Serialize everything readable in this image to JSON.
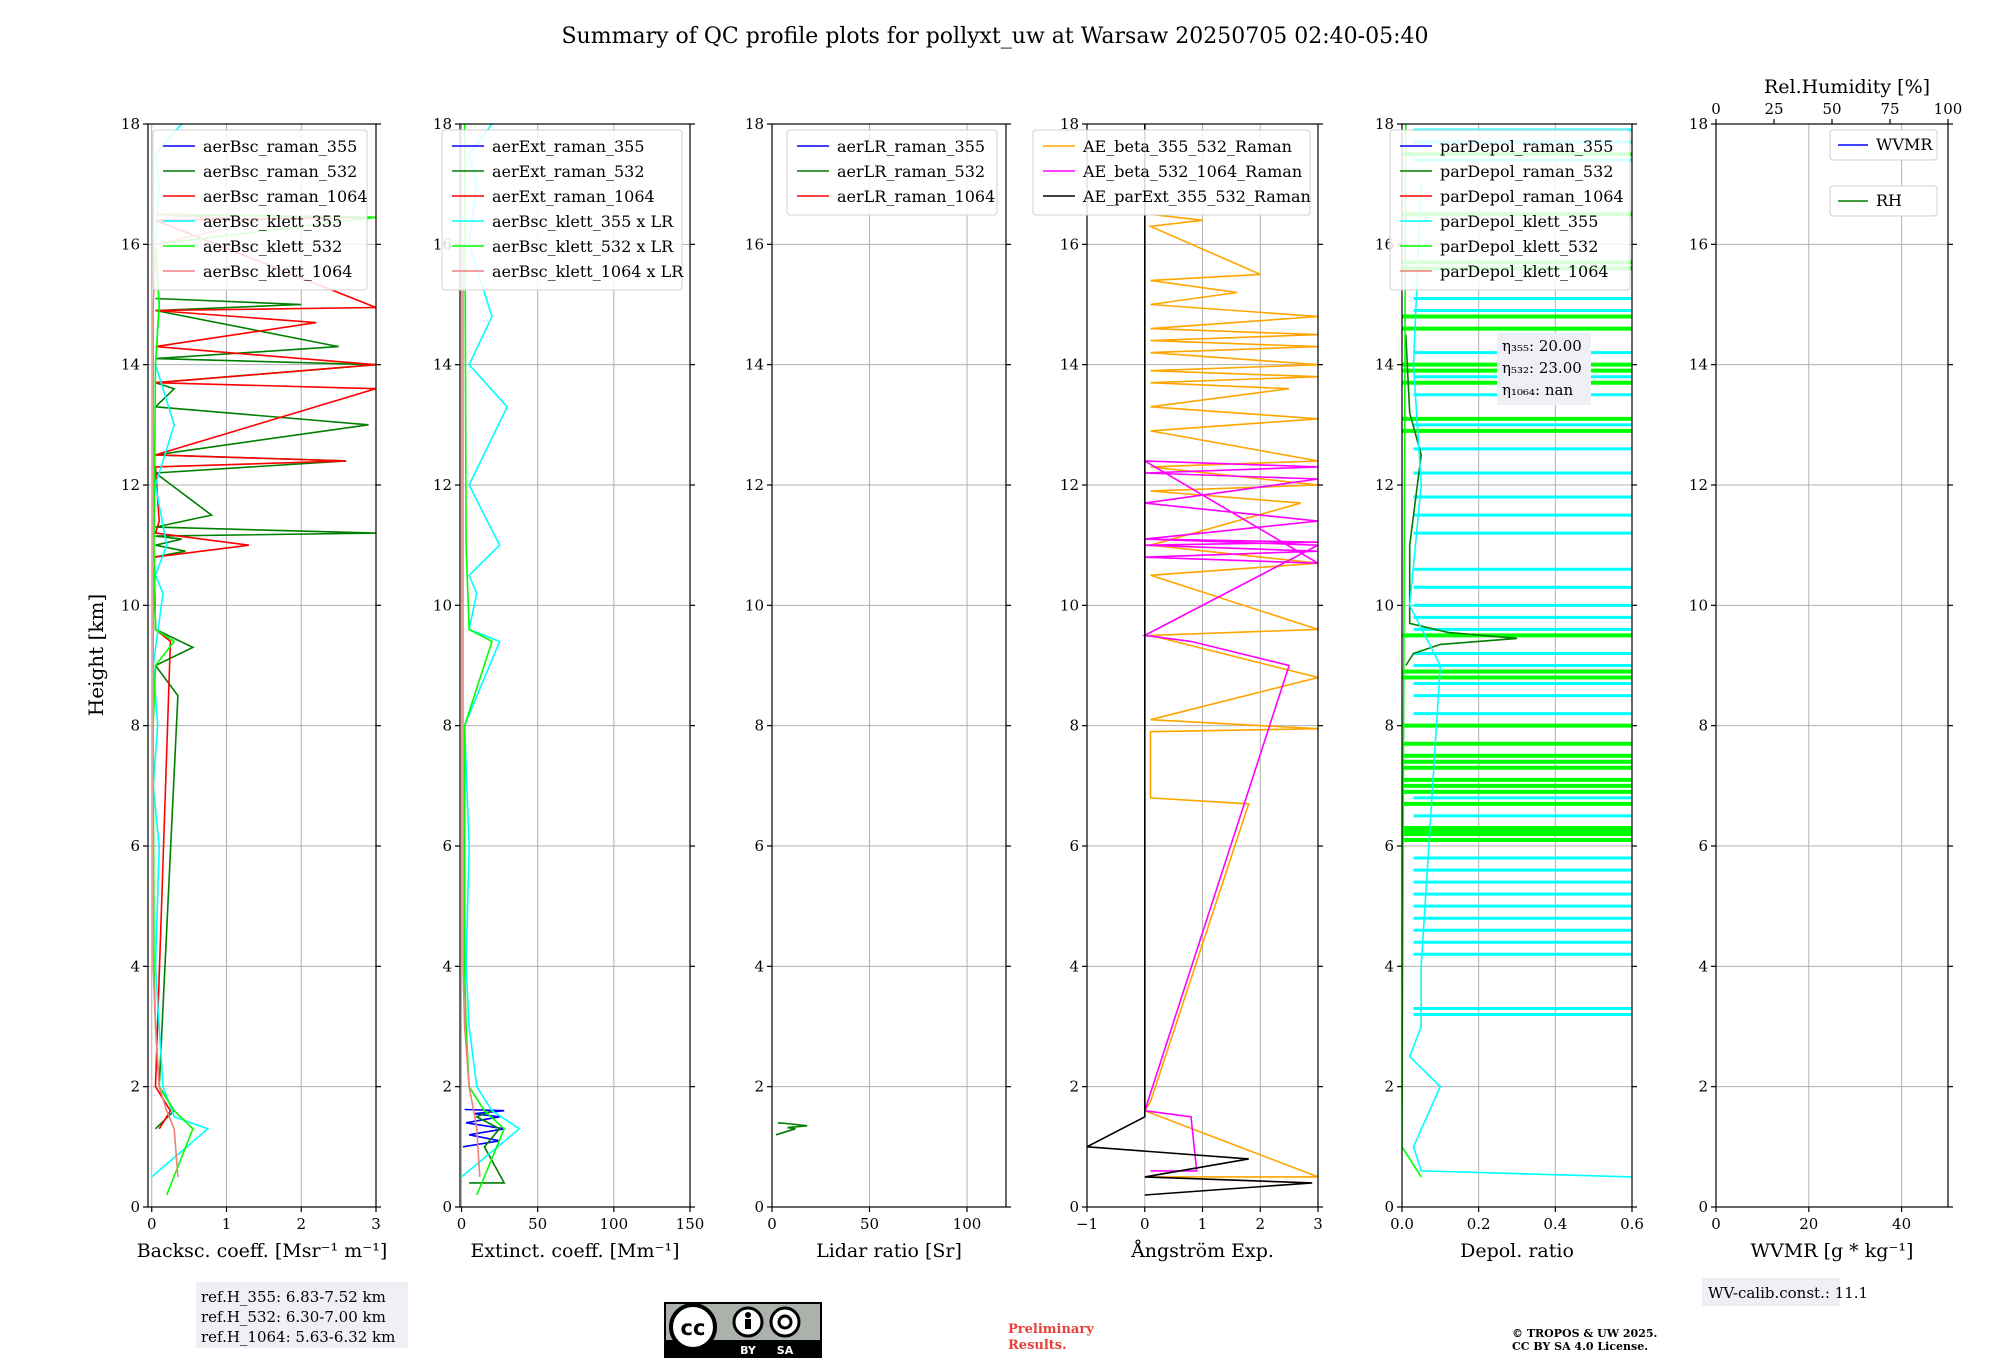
{
  "figure_title": "Summary of QC profile plots for pollyxt_uw at Warsaw 20250705 02:40-05:40",
  "colors": {
    "raman_355": "#0000ff",
    "raman_532": "#008000",
    "raman_1064": "#ff0000",
    "klett_355": "#00ffff",
    "klett_532": "#00ff00",
    "klett_1064": "#f08080",
    "ae_beta_355_532": "#ffa500",
    "ae_beta_532_1064": "#ff00ff",
    "ae_parext": "#000000",
    "grid": "#b0b0b0",
    "box_bg": "#eef0f5"
  },
  "chart_data": [
    {
      "type": "line",
      "panel": "backscatter",
      "xlabel": "Backsc. coeff. [Msr⁻¹ m⁻¹]",
      "ylabel": "Height [km]",
      "xlim": [
        -0.05,
        3
      ],
      "ylim": [
        0,
        18
      ],
      "xticks": [
        "0",
        "1",
        "2",
        "3"
      ],
      "xtick_values": [
        0,
        1,
        2,
        3
      ],
      "yticks": [
        "0",
        "2",
        "4",
        "6",
        "8",
        "10",
        "12",
        "14",
        "16",
        "18"
      ],
      "legend": [
        "aerBsc_raman_355",
        "aerBsc_raman_532",
        "aerBsc_raman_1064",
        "aerBsc_klett_355",
        "aerBsc_klett_532",
        "aerBsc_klett_1064"
      ],
      "series": [
        {
          "name": "aerBsc_raman_532",
          "color_key": "raman_532",
          "x": [
            0.05,
            0.3,
            0.1,
            0.35,
            0.05,
            0.55,
            0.05,
            0.03,
            0.45,
            0.05,
            0.4,
            0.05,
            3.0,
            0.05,
            0.8,
            0.05,
            2.6,
            0.05,
            2.9,
            0.05,
            0.3,
            0.05,
            3.0,
            0.05,
            2.5,
            0.05,
            2.0,
            0.05
          ],
          "y": [
            1.3,
            1.6,
            2.0,
            8.5,
            9.0,
            9.3,
            9.6,
            10.8,
            10.9,
            11.0,
            11.1,
            11.15,
            11.2,
            11.3,
            11.5,
            12.2,
            12.4,
            12.5,
            13.0,
            13.3,
            13.6,
            13.7,
            14.0,
            14.1,
            14.3,
            14.9,
            15.0,
            15.1
          ]
        },
        {
          "name": "aerBsc_raman_1064",
          "color_key": "raman_1064",
          "x": [
            0.1,
            0.25,
            0.05,
            0.25,
            0.05,
            0.03,
            1.3,
            0.05,
            0.1,
            0.05,
            2.6,
            0.05,
            3.0,
            0.05,
            3.0,
            0.05,
            2.2,
            0.05,
            3.0,
            0.05,
            3.0,
            0.05
          ],
          "y": [
            1.3,
            1.6,
            2.0,
            9.4,
            9.6,
            10.8,
            11.0,
            11.2,
            11.4,
            12.3,
            12.4,
            12.5,
            13.6,
            13.7,
            14.0,
            14.3,
            14.7,
            14.9,
            14.95,
            16.4,
            16.45,
            16.5
          ]
        },
        {
          "name": "aerBsc_klett_355",
          "color_key": "klett_355",
          "x": [
            0.0,
            0.75,
            0.3,
            0.15,
            0.1,
            0.05,
            0.1,
            0.02,
            0.08,
            0.02,
            0.15,
            0.05,
            0.2,
            0.05,
            0.3,
            0.05,
            0.1,
            0.05,
            0.1,
            0.05,
            0.4
          ],
          "y": [
            0.5,
            1.3,
            1.5,
            2.0,
            3.0,
            4.0,
            6.0,
            7.0,
            8.0,
            9.0,
            10.2,
            10.5,
            11.0,
            12.0,
            13.0,
            14.0,
            15.0,
            16.0,
            17.0,
            17.5,
            18.0
          ]
        },
        {
          "name": "aerBsc_klett_532",
          "color_key": "klett_532",
          "x": [
            0.2,
            0.55,
            0.3,
            0.1,
            0.05,
            0.03,
            0.02,
            0.05,
            0.3,
            0.05,
            0.03,
            0.05,
            0.1,
            0.05,
            3.0,
            0.05
          ],
          "y": [
            0.2,
            1.3,
            1.6,
            2.0,
            3.0,
            4.0,
            8.0,
            9.0,
            9.4,
            9.6,
            11.0,
            14.0,
            15.0,
            16.0,
            16.45,
            16.5
          ]
        },
        {
          "name": "aerBsc_klett_1064",
          "color_key": "klett_1064",
          "x": [
            0.35,
            0.3,
            0.2,
            0.1,
            0.05,
            0.02,
            0.02,
            0.05,
            1.5,
            0.05
          ],
          "y": [
            0.5,
            1.3,
            1.6,
            2.0,
            3.0,
            4.0,
            15.0,
            16.0,
            16.4,
            16.5
          ]
        }
      ],
      "annotation": [
        "ref.H_355: 6.83-7.52 km",
        "ref.H_532: 6.30-7.00 km",
        "ref.H_1064: 5.63-6.32 km"
      ]
    },
    {
      "type": "line",
      "panel": "extinction",
      "xlabel": "Extinct. coeff. [Mm⁻¹]",
      "xlim": [
        -1,
        150
      ],
      "ylim": [
        0,
        18
      ],
      "xticks": [
        "0",
        "50",
        "100",
        "150"
      ],
      "xtick_values": [
        0,
        50,
        100,
        150
      ],
      "yticks": [
        "0",
        "2",
        "4",
        "6",
        "8",
        "10",
        "12",
        "14",
        "16",
        "18"
      ],
      "legend": [
        "aerExt_raman_355",
        "aerExt_raman_532",
        "aerExt_raman_1064",
        "aerBsc_klett_355 x LR",
        "aerBsc_klett_532 x LR",
        "aerBsc_klett_1064 x LR"
      ],
      "series": [
        {
          "name": "aerExt_raman_355",
          "color_key": "raman_355",
          "x": [
            1,
            25,
            5,
            28,
            3,
            25,
            8,
            28,
            2
          ],
          "y": [
            1.0,
            1.1,
            1.2,
            1.3,
            1.4,
            1.5,
            1.55,
            1.6,
            1.62
          ]
        },
        {
          "name": "aerExt_raman_532",
          "color_key": "raman_532",
          "x": [
            5,
            28,
            15,
            25,
            10,
            20
          ],
          "y": [
            0.4,
            0.4,
            1.0,
            1.3,
            1.5,
            1.6
          ]
        },
        {
          "name": "aerBsc_klett_355 x LR",
          "color_key": "klett_355",
          "x": [
            0,
            38,
            20,
            10,
            5,
            3,
            5,
            2,
            25,
            5,
            10,
            5,
            25,
            5,
            30,
            5,
            20,
            5,
            10,
            5,
            20
          ],
          "y": [
            0.5,
            1.3,
            1.6,
            2.0,
            3.0,
            4.0,
            6.0,
            8.0,
            9.4,
            9.6,
            10.2,
            10.5,
            11.0,
            12.0,
            13.3,
            14.0,
            14.8,
            16.0,
            17.0,
            17.5,
            18.0
          ]
        },
        {
          "name": "aerBsc_klett_532 x LR",
          "color_key": "klett_532",
          "x": [
            10,
            28,
            15,
            5,
            3,
            2,
            2,
            20,
            5,
            3,
            2
          ],
          "y": [
            0.2,
            1.3,
            1.6,
            2.0,
            3.0,
            4.0,
            8.0,
            9.4,
            9.6,
            11.0,
            18.0
          ]
        },
        {
          "name": "aerBsc_klett_1064 x LR",
          "color_key": "klett_1064",
          "x": [
            12,
            10,
            8,
            5,
            2,
            1,
            1
          ],
          "y": [
            0.5,
            1.3,
            1.6,
            2.0,
            3.0,
            4.0,
            16.0
          ]
        }
      ]
    },
    {
      "type": "line",
      "panel": "lidar_ratio",
      "xlabel": "Lidar ratio [Sr]",
      "xlim": [
        0,
        120
      ],
      "ylim": [
        0,
        18
      ],
      "xticks": [
        "0",
        "50",
        "100"
      ],
      "xtick_values": [
        0,
        50,
        100
      ],
      "yticks": [
        "0",
        "2",
        "4",
        "6",
        "8",
        "10",
        "12",
        "14",
        "16",
        "18"
      ],
      "legend": [
        "aerLR_raman_355",
        "aerLR_raman_532",
        "aerLR_raman_1064"
      ],
      "series": [
        {
          "name": "aerLR_raman_532",
          "color_key": "raman_532",
          "x": [
            2,
            12,
            8,
            18,
            10,
            3
          ],
          "y": [
            1.2,
            1.3,
            1.32,
            1.35,
            1.38,
            1.4
          ]
        }
      ]
    },
    {
      "type": "line",
      "panel": "angstrom",
      "xlabel": "Ångström Exp.",
      "xlim": [
        -1,
        3
      ],
      "ylim": [
        0,
        18
      ],
      "xticks": [
        "−1",
        "0",
        "1",
        "2",
        "3"
      ],
      "xtick_values": [
        -1,
        0,
        1,
        2,
        3
      ],
      "yticks": [
        "0",
        "2",
        "4",
        "6",
        "8",
        "10",
        "12",
        "14",
        "16",
        "18"
      ],
      "legend": [
        "AE_beta_355_532_Raman",
        "AE_beta_532_1064_Raman",
        "AE_parExt_355_532_Raman"
      ],
      "series": [
        {
          "name": "AE_beta_355_532_Raman",
          "color_key": "ae_beta_355_532",
          "x": [
            0,
            3,
            0,
            0.1,
            1.8,
            0.1,
            0.1,
            3,
            0.1,
            3,
            0.1,
            3,
            0.1,
            3,
            0.1,
            2.7,
            0.1,
            3,
            0.1,
            3,
            0.1,
            3,
            0.1,
            2.5,
            0.1,
            3,
            0.1,
            3,
            0.1,
            3,
            0.1,
            3,
            0.1,
            3,
            0.1,
            1.6,
            0.1,
            2.0,
            0.1,
            1.0,
            0.1
          ],
          "y": [
            0.5,
            0.5,
            1.6,
            1.75,
            6.7,
            6.8,
            7.9,
            7.95,
            8.1,
            8.8,
            9.5,
            9.6,
            10.5,
            10.7,
            11.0,
            11.7,
            11.9,
            12.0,
            12.3,
            12.4,
            12.9,
            13.1,
            13.3,
            13.6,
            13.7,
            13.8,
            13.9,
            14.0,
            14.2,
            14.3,
            14.4,
            14.5,
            14.6,
            14.8,
            15.0,
            15.2,
            15.4,
            15.5,
            16.3,
            16.4,
            16.5
          ]
        },
        {
          "name": "AE_beta_532_1064_Raman",
          "color_key": "ae_beta_532_1064",
          "x": [
            0.1,
            0.9,
            0.8,
            0,
            2.5,
            0.8,
            0,
            3,
            0,
            3,
            0,
            3,
            0,
            3,
            0,
            3,
            0,
            3,
            0,
            3,
            0
          ],
          "y": [
            0.6,
            0.6,
            1.5,
            1.6,
            9.0,
            9.4,
            9.5,
            11.0,
            11.1,
            11.4,
            11.7,
            12.1,
            12.2,
            12.3,
            12.4,
            10.7,
            10.8,
            10.9,
            11.0,
            11.05,
            11.1
          ]
        },
        {
          "name": "AE_parExt_355_532_Raman",
          "color_key": "ae_parext",
          "x": [
            0,
            2.9,
            0,
            1.8,
            -1,
            0,
            0
          ],
          "y": [
            0.2,
            0.4,
            0.5,
            0.8,
            1.0,
            1.5,
            18.0
          ]
        }
      ]
    },
    {
      "type": "line",
      "panel": "depolarization",
      "xlabel": "Depol. ratio",
      "xlim": [
        0,
        0.6
      ],
      "ylim": [
        0,
        18
      ],
      "xticks": [
        "0.0",
        "0.2",
        "0.4",
        "0.6"
      ],
      "xtick_values": [
        0,
        0.2,
        0.4,
        0.6
      ],
      "yticks": [
        "0",
        "2",
        "4",
        "6",
        "8",
        "10",
        "12",
        "14",
        "16",
        "18"
      ],
      "legend": [
        "parDepol_raman_355",
        "parDepol_raman_532",
        "parDepol_raman_1064",
        "parDepol_klett_355",
        "parDepol_klett_532",
        "parDepol_klett_1064"
      ],
      "series": [
        {
          "name": "parDepol_raman_532",
          "color_key": "raman_532",
          "x": [
            0.01,
            0.03,
            0.1,
            0.3,
            0.12,
            0.02,
            0.02,
            0.05,
            0.02,
            0.01
          ],
          "y": [
            9.0,
            9.2,
            9.35,
            9.45,
            9.55,
            9.7,
            11.0,
            12.5,
            13.2,
            14.5
          ]
        },
        {
          "name": "parDepol_klett_355",
          "color_key": "klett_355",
          "x": [
            0.6,
            0.05,
            0.03,
            0.1,
            0.02,
            0.05,
            0.05,
            0.1,
            0.02,
            0.05,
            0.03,
            0.05
          ],
          "y": [
            0.5,
            0.6,
            1.0,
            2.0,
            2.5,
            3.0,
            4.0,
            9.0,
            10.0,
            12.0,
            14.0,
            17.0
          ]
        },
        {
          "name": "parDepol_klett_532",
          "color_key": "klett_532",
          "x": [
            0.05,
            0.0,
            0.01
          ],
          "y": [
            0.5,
            1.0,
            18.0
          ]
        }
      ],
      "hatch_355_levels": [
        3.2,
        3.3,
        4.2,
        4.4,
        4.6,
        4.8,
        5.0,
        5.2,
        5.4,
        5.6,
        5.8,
        6.3,
        6.5,
        6.8,
        7.0,
        7.5,
        8.0,
        8.2,
        8.5,
        8.7,
        9.0,
        9.2,
        9.6,
        9.8,
        10.0,
        10.3,
        10.6,
        11.2,
        11.5,
        11.8,
        12.2,
        12.6,
        13.0,
        13.5,
        13.8,
        14.2,
        14.6,
        14.9,
        15.1,
        17.4,
        17.7,
        17.9
      ],
      "hatch_532_levels": [
        6.1,
        6.2,
        6.25,
        6.3,
        6.7,
        6.9,
        7.0,
        7.1,
        7.3,
        7.4,
        7.5,
        7.7,
        8.0,
        8.8,
        8.9,
        9.5,
        12.9,
        13.1,
        13.7,
        13.9,
        14.0,
        14.6,
        14.8,
        15.6,
        15.7,
        16.5,
        17.5
      ],
      "annotation": [
        "η₃₅₅: 20.00",
        "η₅₃₂: 23.00",
        "η₁₀₆₄: nan"
      ]
    },
    {
      "type": "line",
      "panel": "wvmr",
      "xlabel": "WVMR [g * kg⁻¹]",
      "top_xlabel": "Rel.Humidity [%]",
      "xlim": [
        0,
        50
      ],
      "ylim": [
        0,
        18
      ],
      "xticks": [
        "0",
        "20",
        "40"
      ],
      "xtick_values": [
        0,
        20,
        40
      ],
      "top_xticks": [
        "0",
        "25",
        "50",
        "75",
        "100"
      ],
      "top_xtick_values": [
        0,
        25,
        50,
        75,
        100
      ],
      "yticks": [
        "0",
        "2",
        "4",
        "6",
        "8",
        "10",
        "12",
        "14",
        "16",
        "18"
      ],
      "legend": [
        "WVMR",
        "RH"
      ],
      "series": [],
      "annotation": "WV-calib.const.: 11.1"
    }
  ],
  "footer": {
    "license_badge": {
      "cc": "cc",
      "by": "BY",
      "sa": "SA"
    },
    "preliminary_line1": "Preliminary",
    "preliminary_line2": "Results.",
    "copyright_line1": "© TROPOS & UW 2025.",
    "copyright_line2": "CC BY SA 4.0 License."
  }
}
